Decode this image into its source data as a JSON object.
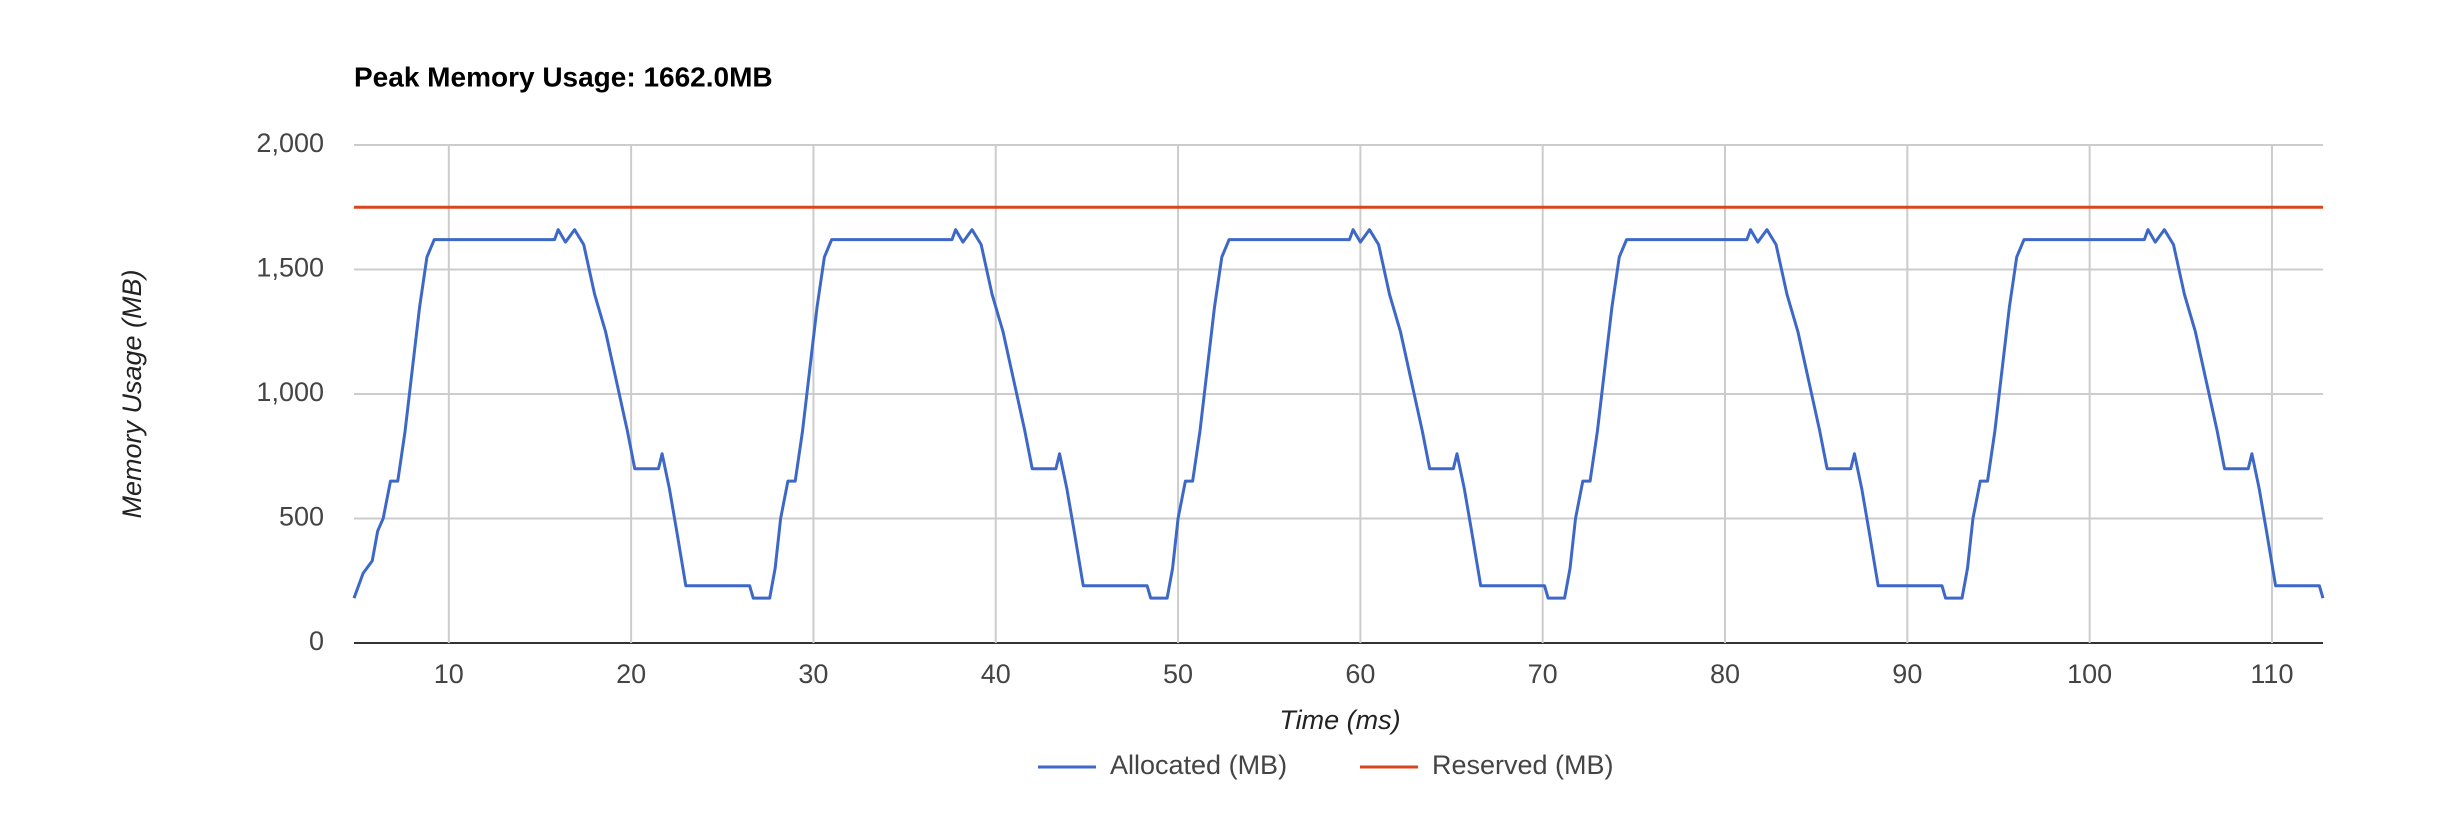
{
  "chart_data": {
    "type": "line",
    "title": "Peak Memory Usage: 1662.0MB",
    "x_label": "Time (ms)",
    "y_label": "Memory Usage (MB)",
    "xlim": [
      4.8,
      112.8
    ],
    "xticks": [
      10,
      20,
      30,
      40,
      50,
      60,
      70,
      80,
      90,
      100,
      110
    ],
    "ylim": [
      0,
      2000
    ],
    "yticks": [
      {
        "value": 2000,
        "label": "2,000"
      },
      {
        "value": 1500,
        "label": "1,500"
      },
      {
        "value": 1000,
        "label": "1,000"
      },
      500,
      0
    ],
    "grid": true,
    "legend": "bottom",
    "series": [
      {
        "name": "Allocated (MB)",
        "color": "#3d68c8",
        "x": [
          4.8,
          5.3,
          5.8,
          6.1,
          6.4,
          6.8,
          7.2,
          7.6,
          8.0,
          8.4,
          8.8,
          9.2,
          15.8,
          16.0,
          16.4,
          16.9,
          17.4,
          18.0,
          18.6,
          19.2,
          19.8,
          20.2,
          21.5,
          21.7,
          22.1,
          22.5,
          23.0,
          26.5,
          26.7,
          27.6,
          27.9,
          28.2,
          28.6,
          29.0,
          29.4,
          29.8,
          30.2,
          30.6,
          31.0,
          37.6,
          37.8,
          38.2,
          38.7,
          39.2,
          39.8,
          40.4,
          41.0,
          41.6,
          42.0,
          43.3,
          43.5,
          43.9,
          44.3,
          44.8,
          48.3,
          48.5,
          49.4,
          49.7,
          50.0,
          50.4,
          50.8,
          51.2,
          51.6,
          52.0,
          52.4,
          52.8,
          59.4,
          59.6,
          60.0,
          60.5,
          61.0,
          61.6,
          62.2,
          62.8,
          63.4,
          63.8,
          65.1,
          65.3,
          65.7,
          66.1,
          66.6,
          70.1,
          70.3,
          71.2,
          71.5,
          71.8,
          72.2,
          72.6,
          73.0,
          73.4,
          73.8,
          74.2,
          74.6,
          81.2,
          81.4,
          81.8,
          82.3,
          82.8,
          83.4,
          84.0,
          84.6,
          85.2,
          85.6,
          86.9,
          87.1,
          87.5,
          87.9,
          88.4,
          91.9,
          92.1,
          93.0,
          93.3,
          93.6,
          94.0,
          94.4,
          94.8,
          95.2,
          95.6,
          96.0,
          96.4,
          103.0,
          103.2,
          103.6,
          104.1,
          104.6,
          105.2,
          105.8,
          106.4,
          107.0,
          107.4,
          108.7,
          108.9,
          109.3,
          109.7,
          110.2,
          112.6,
          112.8
        ],
        "values": [
          180,
          280,
          330,
          450,
          500,
          650,
          650,
          850,
          1100,
          1350,
          1550,
          1620,
          1620,
          1660,
          1610,
          1660,
          1600,
          1400,
          1250,
          1050,
          850,
          700,
          700,
          760,
          620,
          450,
          230,
          230,
          180,
          180,
          300,
          500,
          650,
          650,
          850,
          1100,
          1350,
          1550,
          1620,
          1620,
          1660,
          1610,
          1660,
          1600,
          1400,
          1250,
          1050,
          850,
          700,
          700,
          760,
          620,
          450,
          230,
          230,
          180,
          180,
          300,
          500,
          650,
          650,
          850,
          1100,
          1350,
          1550,
          1620,
          1620,
          1660,
          1610,
          1660,
          1600,
          1400,
          1250,
          1050,
          850,
          700,
          700,
          760,
          620,
          450,
          230,
          230,
          180,
          180,
          300,
          500,
          650,
          650,
          850,
          1100,
          1350,
          1550,
          1620,
          1620,
          1660,
          1610,
          1660,
          1600,
          1400,
          1250,
          1050,
          850,
          700,
          700,
          760,
          620,
          450,
          230,
          230,
          180,
          180,
          300,
          500,
          650,
          650,
          850,
          1100,
          1350,
          1550,
          1620,
          1620,
          1660,
          1610,
          1660,
          1600,
          1400,
          1250,
          1050,
          850,
          700,
          700,
          760,
          620,
          450,
          230,
          230,
          180
        ]
      },
      {
        "name": "Reserved (MB)",
        "color": "#d9461e",
        "x": [
          4.8,
          112.8
        ],
        "values": [
          1750,
          1750
        ]
      }
    ]
  }
}
